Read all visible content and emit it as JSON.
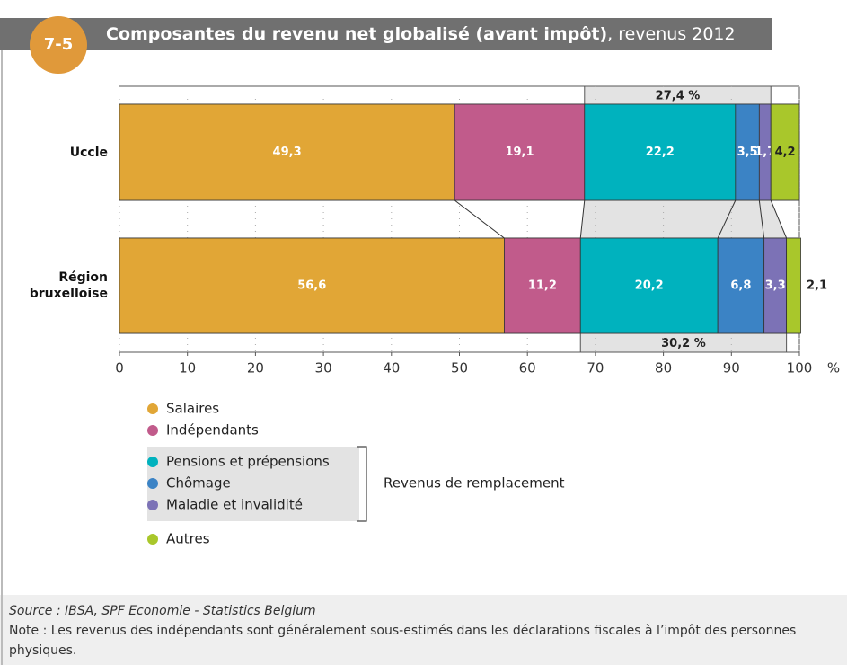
{
  "chart_data": {
    "type": "stacked-bar-horizontal",
    "badge": "7-5",
    "title": "Composantes du revenu net globalisé (avant impôt)",
    "subtitle": ", revenus 2012",
    "categories": [
      "Uccle",
      "Région bruxelloise"
    ],
    "series": [
      {
        "name": "Salaires",
        "color": "#e1a636",
        "values": [
          49.3,
          56.6
        ],
        "value_labels": [
          "49,3",
          "56,6"
        ]
      },
      {
        "name": "Indépendants",
        "color": "#c15b8b",
        "values": [
          19.1,
          11.2
        ],
        "value_labels": [
          "19,1",
          "11,2"
        ]
      },
      {
        "name": "Pensions et prépensions",
        "color": "#00b2be",
        "values": [
          22.2,
          20.2
        ],
        "value_labels": [
          "22,2",
          "20,2"
        ]
      },
      {
        "name": "Chômage",
        "color": "#3b83c5",
        "values": [
          3.5,
          6.8
        ],
        "value_labels": [
          "3,5",
          "6,8"
        ]
      },
      {
        "name": "Maladie et invalidité",
        "color": "#7c72b6",
        "values": [
          1.7,
          3.3
        ],
        "value_labels": [
          "1,7",
          "3,3"
        ]
      },
      {
        "name": "Autres",
        "color": "#a9c72b",
        "values": [
          4.2,
          2.1
        ],
        "value_labels": [
          "4,2",
          "2,1"
        ]
      }
    ],
    "group_label": "Revenus de remplacement",
    "group_totals": [
      {
        "value": 27.4,
        "label": "27,4 %"
      },
      {
        "value": 30.2,
        "label": "30,2 %"
      }
    ],
    "xlim": [
      0,
      100
    ],
    "xticks": [
      0,
      10,
      20,
      30,
      40,
      50,
      60,
      70,
      80,
      90,
      100
    ],
    "x_unit": "%",
    "source": "Source : IBSA, SPF Economie - Statistics Belgium",
    "note": "Note : Les revenus des indépendants sont généralement sous-estimés dans les déclarations fiscales à l’impôt des personnes physiques."
  }
}
